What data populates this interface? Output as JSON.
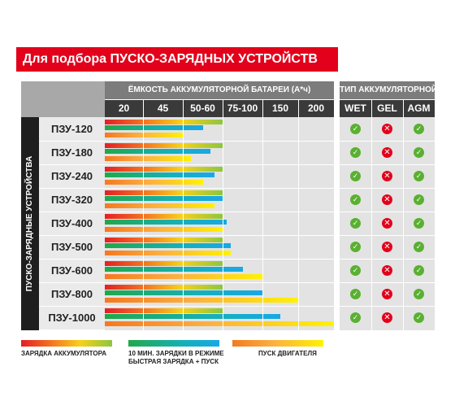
{
  "title": "Для подбора ПУСКО-ЗАРЯДНЫХ УСТРОЙСТВ",
  "capacity_header": "ЁМКОСТЬ АККУМУЛЯТОРНОЙ БАТАРЕИ (А*ч)",
  "type_header": "ТИП АККУМУЛЯТОРНОЙ БАТАРЕИ",
  "side_label": "ПУСКО-ЗАРЯДНЫЕ УСТРОЙСТВА",
  "capacity_columns": [
    "20",
    "45",
    "50-60",
    "75-100",
    "150",
    "200"
  ],
  "type_columns": [
    "WET",
    "GEL",
    "AGM"
  ],
  "devices": [
    {
      "label": "ПЗУ-120",
      "charge": 3.0,
      "fast": 2.5,
      "start": 2.0,
      "wet": "ok",
      "gel": "no",
      "agm": "ok"
    },
    {
      "label": "ПЗУ-180",
      "charge": 3.0,
      "fast": 2.7,
      "start": 2.2,
      "wet": "ok",
      "gel": "no",
      "agm": "ok"
    },
    {
      "label": "ПЗУ-240",
      "charge": 3.0,
      "fast": 2.8,
      "start": 2.5,
      "wet": "ok",
      "gel": "no",
      "agm": "ok"
    },
    {
      "label": "ПЗУ-320",
      "charge": 3.0,
      "fast": 3.0,
      "start": 2.8,
      "wet": "ok",
      "gel": "no",
      "agm": "ok"
    },
    {
      "label": "ПЗУ-400",
      "charge": 3.0,
      "fast": 3.1,
      "start": 3.0,
      "wet": "ok",
      "gel": "no",
      "agm": "ok"
    },
    {
      "label": "ПЗУ-500",
      "charge": 3.0,
      "fast": 3.2,
      "start": 3.2,
      "wet": "ok",
      "gel": "no",
      "agm": "ok"
    },
    {
      "label": "ПЗУ-600",
      "charge": 3.0,
      "fast": 3.5,
      "start": 4.0,
      "wet": "ok",
      "gel": "no",
      "agm": "ok"
    },
    {
      "label": "ПЗУ-800",
      "charge": 3.0,
      "fast": 4.0,
      "start": 5.0,
      "wet": "ok",
      "gel": "no",
      "agm": "ok"
    },
    {
      "label": "ПЗУ-1000",
      "charge": 3.0,
      "fast": 4.5,
      "start": 6.0,
      "wet": "ok",
      "gel": "no",
      "agm": "ok"
    }
  ],
  "legend": {
    "charge": "ЗАРЯДКА АККУМУЛЯТОРА",
    "fast_line1": "10 МИН. ЗАРЯДКИ В РЕЖИМЕ",
    "fast_line2": "БЫСТРАЯ  ЗАРЯДКА + ПУСК",
    "start": "ПУСК ДВИГАТЕЛЯ"
  },
  "icons": {
    "ok": "check-circle-icon",
    "no": "cross-circle-icon"
  },
  "colors": {
    "accent_red": "#e2001a",
    "ok_green": "#5ab031",
    "header_dark": "#3a3a3a",
    "header_grey": "#7c7c7c"
  }
}
